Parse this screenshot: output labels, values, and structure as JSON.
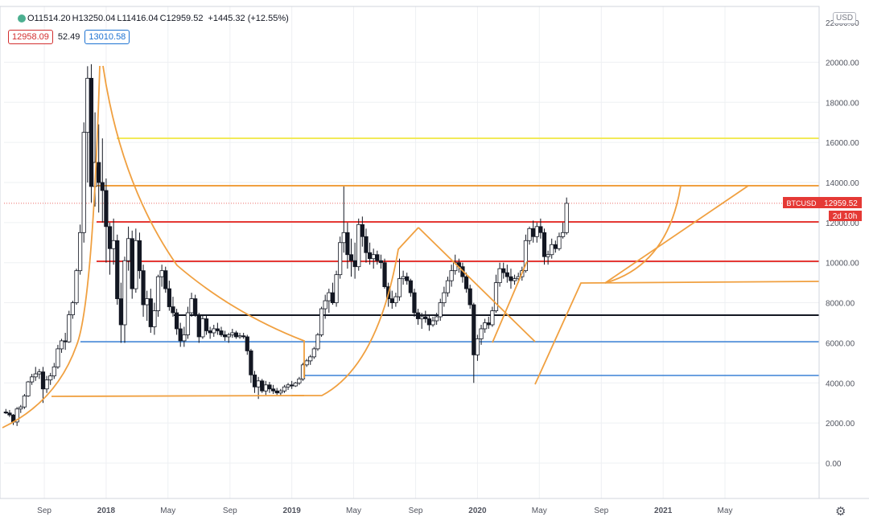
{
  "header": {
    "o": "O11514.20",
    "h": "H13250.04",
    "l": "L11416.04",
    "c": "C12959.52",
    "change": "+1445.32 (+12.55%)"
  },
  "indicators": {
    "left_value": "12958.09",
    "middle_value": "52.49",
    "right_value": "13010.58"
  },
  "currency_badge": "USD",
  "price_label": {
    "symbol": "BTCUSD",
    "price": "12959.52",
    "countdown": "2d 10h"
  },
  "colors": {
    "up": "#131722",
    "down": "#131722",
    "orange": "#f0a040",
    "red": "#e53935",
    "blue": "#3b82d6",
    "yellow": "#f2ea59",
    "black": "#131722",
    "grid": "#eef0f3"
  },
  "chart_data": {
    "type": "candlestick",
    "title": "",
    "xlabel": "",
    "ylabel": "",
    "ylim": [
      -2000,
      22000
    ],
    "x_ticks": [
      "Sep",
      "2018",
      "May",
      "Sep",
      "2019",
      "May",
      "Sep",
      "2020",
      "May",
      "Sep",
      "2021",
      "May"
    ],
    "x_tick_times": [
      2017.667,
      2018.0,
      2018.333,
      2018.667,
      2019.0,
      2019.333,
      2019.667,
      2020.0,
      2020.333,
      2020.667,
      2021.0,
      2021.333
    ],
    "y_ticks": [
      "0.00",
      "2000.00",
      "4000.00",
      "6000.00",
      "8000.00",
      "10000.00",
      "12000.00",
      "14000.00",
      "16000.00",
      "18000.00",
      "20000.00"
    ],
    "y_tick_values": [
      0,
      2000,
      4000,
      6000,
      8000,
      10000,
      12000,
      14000,
      16000,
      18000,
      20000
    ],
    "y_tick_top_partial": "22000.00",
    "x_range": [
      2017.45,
      2021.84
    ],
    "candles": [
      [
        2017.46,
        2550,
        2700,
        2450,
        2500
      ],
      [
        2017.48,
        2500,
        2650,
        2300,
        2400
      ],
      [
        2017.5,
        2400,
        2450,
        1900,
        2050
      ],
      [
        2017.52,
        2050,
        2800,
        1850,
        2700
      ],
      [
        2017.54,
        2700,
        2900,
        2500,
        2800
      ],
      [
        2017.56,
        2800,
        3450,
        2700,
        3350
      ],
      [
        2017.58,
        3350,
        4100,
        3300,
        4050
      ],
      [
        2017.6,
        4050,
        4450,
        3900,
        4300
      ],
      [
        2017.62,
        4300,
        4800,
        4100,
        4450
      ],
      [
        2017.64,
        4450,
        4700,
        4200,
        4550
      ],
      [
        2017.66,
        4550,
        4800,
        3000,
        3700
      ],
      [
        2017.68,
        3700,
        4350,
        3500,
        4150
      ],
      [
        2017.7,
        4150,
        4500,
        3900,
        4350
      ],
      [
        2017.72,
        4350,
        5000,
        4200,
        4800
      ],
      [
        2017.74,
        4800,
        5900,
        4700,
        5700
      ],
      [
        2017.76,
        5700,
        6200,
        5500,
        6100
      ],
      [
        2017.78,
        6100,
        6500,
        5650,
        6050
      ],
      [
        2017.8,
        6050,
        7600,
        6000,
        7400
      ],
      [
        2017.82,
        7400,
        8100,
        7200,
        8000
      ],
      [
        2017.84,
        8000,
        9700,
        7900,
        9600
      ],
      [
        2017.86,
        9600,
        11900,
        9400,
        11500
      ],
      [
        2017.88,
        11500,
        17000,
        11000,
        16500
      ],
      [
        2017.9,
        16500,
        19800,
        14000,
        19200
      ],
      [
        2017.92,
        19200,
        19900,
        13000,
        13800
      ],
      [
        2017.94,
        13800,
        17500,
        12800,
        15000
      ],
      [
        2017.96,
        15000,
        16900,
        12500,
        14000
      ],
      [
        2017.98,
        14000,
        16200,
        12000,
        13600
      ],
      [
        2018.0,
        13600,
        14200,
        10000,
        11800
      ],
      [
        2018.02,
        11800,
        12000,
        9400,
        10700
      ],
      [
        2018.04,
        10700,
        12200,
        9900,
        11100
      ],
      [
        2018.06,
        11100,
        11400,
        7900,
        8200
      ],
      [
        2018.08,
        8200,
        9000,
        6000,
        6900
      ],
      [
        2018.1,
        6900,
        10300,
        6000,
        10100
      ],
      [
        2018.12,
        10100,
        11800,
        9600,
        11200
      ],
      [
        2018.14,
        11200,
        11600,
        8200,
        8700
      ],
      [
        2018.16,
        8700,
        11700,
        8500,
        11100
      ],
      [
        2018.18,
        11100,
        11500,
        9200,
        9600
      ],
      [
        2018.2,
        9600,
        9900,
        7300,
        7900
      ],
      [
        2018.22,
        7900,
        8600,
        7100,
        8200
      ],
      [
        2018.24,
        8200,
        8700,
        6500,
        6800
      ],
      [
        2018.26,
        6800,
        8000,
        6400,
        7600
      ],
      [
        2018.28,
        7600,
        9400,
        7300,
        9300
      ],
      [
        2018.3,
        9300,
        9900,
        8800,
        9600
      ],
      [
        2018.32,
        9600,
        9800,
        8500,
        8700
      ],
      [
        2018.34,
        8700,
        9100,
        7600,
        7800
      ],
      [
        2018.36,
        7800,
        8300,
        7300,
        7500
      ],
      [
        2018.38,
        7500,
        7700,
        6400,
        6700
      ],
      [
        2018.4,
        6700,
        7000,
        5800,
        6100
      ],
      [
        2018.42,
        6100,
        6800,
        5800,
        6400
      ],
      [
        2018.44,
        6400,
        7800,
        6200,
        7500
      ],
      [
        2018.46,
        7500,
        8500,
        7300,
        8200
      ],
      [
        2018.48,
        8200,
        8400,
        7300,
        7400
      ],
      [
        2018.5,
        7400,
        7500,
        6000,
        6300
      ],
      [
        2018.52,
        6300,
        7400,
        6200,
        7200
      ],
      [
        2018.54,
        7200,
        7400,
        6400,
        6600
      ],
      [
        2018.56,
        6600,
        6800,
        6200,
        6500
      ],
      [
        2018.58,
        6500,
        6900,
        6300,
        6700
      ],
      [
        2018.6,
        6700,
        7000,
        6400,
        6600
      ],
      [
        2018.62,
        6600,
        6800,
        6300,
        6400
      ],
      [
        2018.64,
        6400,
        6600,
        6100,
        6300
      ],
      [
        2018.66,
        6300,
        6500,
        6000,
        6400
      ],
      [
        2018.68,
        6400,
        6700,
        6250,
        6500
      ],
      [
        2018.7,
        6500,
        6600,
        6200,
        6300
      ],
      [
        2018.72,
        6300,
        6500,
        6200,
        6350
      ],
      [
        2018.74,
        6350,
        6500,
        6200,
        6300
      ],
      [
        2018.76,
        6300,
        6400,
        5400,
        5600
      ],
      [
        2018.78,
        5600,
        5700,
        4000,
        4400
      ],
      [
        2018.8,
        4400,
        4600,
        3500,
        3800
      ],
      [
        2018.82,
        3800,
        4300,
        3200,
        4100
      ],
      [
        2018.84,
        4100,
        4200,
        3500,
        3600
      ],
      [
        2018.86,
        3600,
        4100,
        3400,
        3900
      ],
      [
        2018.88,
        3900,
        4050,
        3500,
        3700
      ],
      [
        2018.9,
        3700,
        3900,
        3450,
        3600
      ],
      [
        2018.92,
        3600,
        3750,
        3400,
        3500
      ],
      [
        2018.94,
        3500,
        3700,
        3350,
        3600
      ],
      [
        2018.96,
        3600,
        3900,
        3500,
        3800
      ],
      [
        2018.98,
        3800,
        4000,
        3650,
        3900
      ],
      [
        2019.0,
        3900,
        4100,
        3700,
        3850
      ],
      [
        2019.02,
        3850,
        4050,
        3800,
        4000
      ],
      [
        2019.04,
        4000,
        4300,
        3900,
        4200
      ],
      [
        2019.06,
        4200,
        5000,
        4100,
        4900
      ],
      [
        2019.08,
        4900,
        5200,
        4800,
        5100
      ],
      [
        2019.1,
        5100,
        5400,
        4900,
        5300
      ],
      [
        2019.12,
        5300,
        5800,
        5200,
        5700
      ],
      [
        2019.14,
        5700,
        6500,
        5600,
        6400
      ],
      [
        2019.16,
        6400,
        7800,
        6300,
        7700
      ],
      [
        2019.18,
        7700,
        8400,
        7200,
        8100
      ],
      [
        2019.2,
        8100,
        8700,
        7500,
        8500
      ],
      [
        2019.22,
        8500,
        9000,
        7900,
        8000
      ],
      [
        2019.24,
        8000,
        9600,
        7800,
        9400
      ],
      [
        2019.26,
        9400,
        11300,
        9200,
        11000
      ],
      [
        2019.28,
        11000,
        13800,
        10500,
        11500
      ],
      [
        2019.3,
        11500,
        12000,
        9700,
        10400
      ],
      [
        2019.32,
        10400,
        11200,
        9300,
        10100
      ],
      [
        2019.34,
        10100,
        11000,
        9200,
        9800
      ],
      [
        2019.36,
        9800,
        12200,
        9600,
        11900
      ],
      [
        2019.38,
        11900,
        12300,
        10800,
        11300
      ],
      [
        2019.4,
        11300,
        11700,
        10000,
        10500
      ],
      [
        2019.42,
        10500,
        11000,
        9900,
        10200
      ],
      [
        2019.44,
        10200,
        10700,
        9700,
        10400
      ],
      [
        2019.46,
        10400,
        10600,
        9900,
        10100
      ],
      [
        2019.48,
        10100,
        10400,
        9700,
        10000
      ],
      [
        2019.5,
        10000,
        10200,
        8700,
        8800
      ],
      [
        2019.52,
        8800,
        9000,
        7800,
        8200
      ],
      [
        2019.54,
        8200,
        8600,
        7700,
        8000
      ],
      [
        2019.56,
        8000,
        8500,
        7800,
        8300
      ],
      [
        2019.58,
        8300,
        10200,
        8100,
        9200
      ],
      [
        2019.6,
        9200,
        9600,
        8900,
        9300
      ],
      [
        2019.62,
        9300,
        9500,
        8900,
        9100
      ],
      [
        2019.64,
        9100,
        9200,
        8300,
        8500
      ],
      [
        2019.66,
        8500,
        8700,
        7300,
        7500
      ],
      [
        2019.68,
        7500,
        7700,
        6900,
        7200
      ],
      [
        2019.7,
        7200,
        7500,
        6700,
        7300
      ],
      [
        2019.72,
        7300,
        7600,
        7000,
        7200
      ],
      [
        2019.74,
        7200,
        7400,
        6600,
        6900
      ],
      [
        2019.76,
        6900,
        7300,
        6800,
        7100
      ],
      [
        2019.78,
        7100,
        7500,
        6900,
        7300
      ],
      [
        2019.8,
        7300,
        8200,
        7100,
        8000
      ],
      [
        2019.82,
        8000,
        8800,
        7800,
        8500
      ],
      [
        2019.84,
        8500,
        9300,
        8300,
        9100
      ],
      [
        2019.86,
        9100,
        9900,
        8800,
        9600
      ],
      [
        2019.88,
        9600,
        10400,
        9400,
        10000
      ],
      [
        2019.9,
        10000,
        10200,
        9500,
        9800
      ],
      [
        2019.92,
        9800,
        10000,
        9000,
        9300
      ],
      [
        2019.94,
        9300,
        9500,
        8500,
        8700
      ],
      [
        2019.96,
        8700,
        8900,
        7700,
        7900
      ],
      [
        2019.98,
        7900,
        8000,
        4000,
        5400
      ],
      [
        2020.0,
        5400,
        6400,
        5100,
        6200
      ],
      [
        2020.02,
        6200,
        6900,
        5900,
        6700
      ],
      [
        2020.04,
        6700,
        7200,
        6500,
        7000
      ],
      [
        2020.06,
        7000,
        7300,
        6700,
        6900
      ],
      [
        2020.08,
        6900,
        7800,
        6800,
        7600
      ],
      [
        2020.1,
        7600,
        9400,
        7500,
        9000
      ],
      [
        2020.12,
        9000,
        10000,
        8800,
        9700
      ],
      [
        2020.14,
        9700,
        10000,
        9200,
        9500
      ],
      [
        2020.16,
        9500,
        9900,
        9000,
        9300
      ],
      [
        2020.18,
        9300,
        9700,
        8700,
        9100
      ],
      [
        2020.2,
        9100,
        9400,
        8900,
        9200
      ],
      [
        2020.22,
        9200,
        9500,
        9000,
        9300
      ],
      [
        2020.24,
        9300,
        9800,
        9100,
        9600
      ],
      [
        2020.26,
        9600,
        11400,
        9500,
        11100
      ],
      [
        2020.28,
        11100,
        11800,
        10900,
        11700
      ],
      [
        2020.3,
        11700,
        12100,
        11000,
        11300
      ],
      [
        2020.32,
        11300,
        12000,
        11000,
        11800
      ],
      [
        2020.34,
        11800,
        12200,
        11200,
        11500
      ],
      [
        2020.36,
        11500,
        11700,
        9900,
        10300
      ],
      [
        2020.38,
        10300,
        10600,
        9900,
        10400
      ],
      [
        2020.4,
        10400,
        11200,
        10200,
        10900
      ],
      [
        2020.42,
        10900,
        11100,
        10500,
        10700
      ],
      [
        2020.44,
        10700,
        11500,
        10600,
        11300
      ],
      [
        2020.46,
        11300,
        12000,
        11200,
        11500
      ],
      [
        2020.48,
        11500,
        13250,
        11400,
        12960
      ]
    ]
  }
}
